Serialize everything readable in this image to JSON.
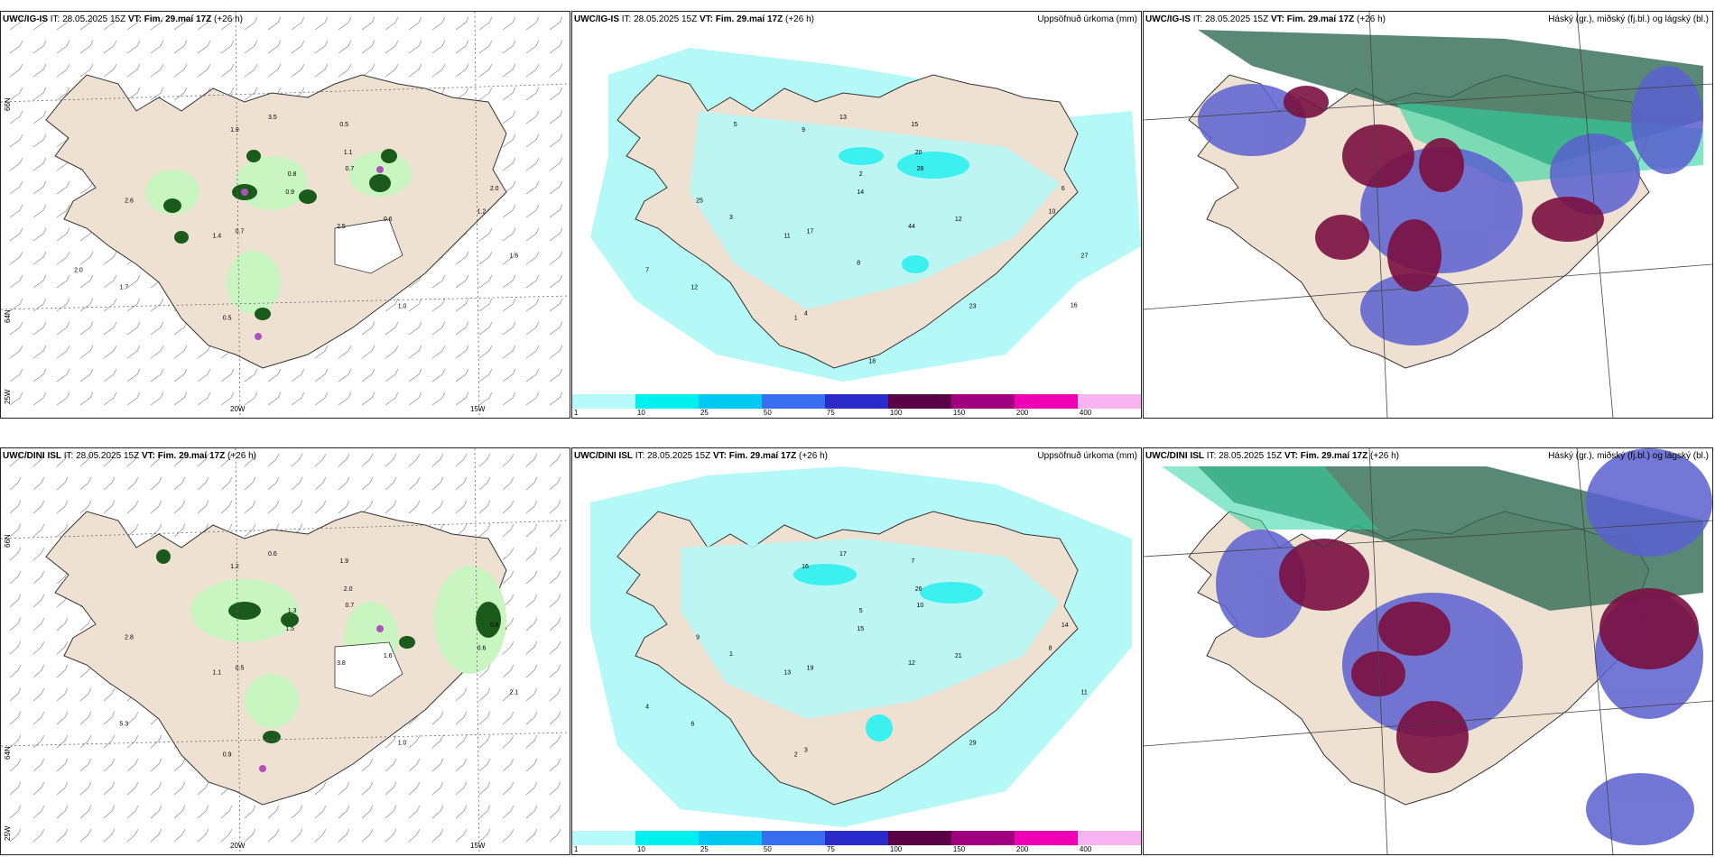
{
  "row1": {
    "p1": {
      "model": "UWC/IG-IS",
      "it": "IT: 28.05.2025 15Z",
      "vt": "VT: Fim. 29.maí 17Z",
      "lead": "(+26 h)"
    },
    "p2": {
      "model": "UWC/IG-IS",
      "it": "IT: 28.05.2025 15Z",
      "vt": "VT: Fim. 29.maí 17Z",
      "lead": "(+26 h)",
      "right": "Uppsöfnuð úrkoma (mm)"
    },
    "p3": {
      "model": "UWC/IG-IS",
      "it": "IT: 28.05.2025 15Z",
      "vt": "VT: Fim. 29.maí 17Z",
      "lead": "(+26 h)",
      "right": "Háský (gr.), miðský (fj.bl.) og lágský (bl.)"
    }
  },
  "row2": {
    "p1": {
      "model": "UWC/DINI ISL",
      "it": "IT: 28.05.2025 15Z",
      "vt": "VT: Fim. 29.maí 17Z",
      "lead": "(+26 h)"
    },
    "p2": {
      "model": "UWC/DINI ISL",
      "it": "IT: 28.05.2025 15Z",
      "vt": "VT: Fim. 29.maí 17Z",
      "lead": "(+26 h)",
      "right": "Uppsöfnuð úrkoma (mm)"
    },
    "p3": {
      "model": "UWC/DINI ISL",
      "it": "IT: 28.05.2025 15Z",
      "vt": "VT: Fim. 29.maí 17Z",
      "lead": "(+26 h)",
      "right": "Háský (gr.), miðský (fj.bl.) og lágský (bl.)"
    }
  },
  "axis": {
    "lat66": "66N",
    "lat64": "64N",
    "lon25": "25W",
    "lon20": "20W",
    "lon15": "15W"
  },
  "colorbar": {
    "ticks": [
      "1",
      "10",
      "25",
      "50",
      "75",
      "100",
      "150",
      "200",
      "400"
    ],
    "colors": [
      "#b8fafa",
      "#00f0f0",
      "#00c8f0",
      "#3a6ef0",
      "#2a2ac8",
      "#5a0046",
      "#a00080",
      "#f000b4",
      "#f8b4f0"
    ]
  },
  "colors": {
    "land": "#efe1d2",
    "precip_light": "#b4f8f8",
    "precip_mid": "#3cf0f0",
    "green_light": "#c8f5c0",
    "green_dark": "#1a5a1a",
    "purple": "#b050c0",
    "high_cloud": "#2f6a55",
    "mid_cloud": "#5a60d0",
    "low_cloud": "#7a1040"
  },
  "values": {
    "p1a": [
      "0.5",
      "0.8",
      "1.2",
      "2.0",
      "1.4",
      "0.6",
      "1.1",
      "0.7",
      "0.9",
      "1.0",
      "1.6",
      "2.5",
      "0.7",
      "3.5",
      "1.9",
      "0.5",
      "2.6",
      "1.7",
      "2.0"
    ],
    "p2a": [
      "1",
      "2",
      "10",
      "6",
      "11",
      "12",
      "20",
      "17",
      "14",
      "23",
      "27",
      "44",
      "28",
      "13",
      "9",
      "15",
      "25",
      "12",
      "7",
      "4",
      "3",
      "5",
      "8",
      "16",
      "18"
    ],
    "p1b": [
      "0.9",
      "1.3",
      "0.6",
      "0.8",
      "1.1",
      "1.6",
      "2.0",
      "0.5",
      "1.5",
      "1.0",
      "2.1",
      "3.8",
      "0.7",
      "0.6",
      "1.2",
      "1.9",
      "2.8",
      "5.3"
    ],
    "p2b": [
      "2",
      "5",
      "8",
      "14",
      "13",
      "21",
      "26",
      "19",
      "15",
      "29",
      "11",
      "12",
      "10",
      "17",
      "16",
      "7",
      "9",
      "6",
      "4",
      "3",
      "1"
    ]
  }
}
